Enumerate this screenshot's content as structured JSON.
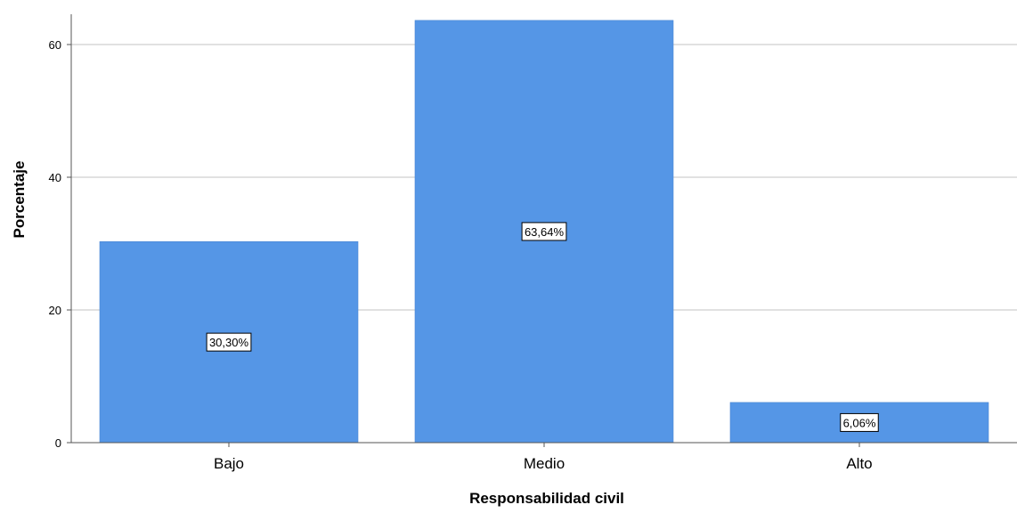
{
  "chart_data": {
    "type": "bar",
    "categories": [
      "Bajo",
      "Medio",
      "Alto"
    ],
    "values": [
      30.3,
      63.64,
      6.06
    ],
    "data_labels": [
      "30,30%",
      "63,64%",
      "6,06%"
    ],
    "title": "",
    "xlabel": "Responsabilidad civil",
    "ylabel": "Porcentaje",
    "ylim": [
      0,
      65
    ],
    "yticks": [
      0,
      20,
      40,
      60
    ],
    "grid": true,
    "bar_color": "#5596e6"
  }
}
